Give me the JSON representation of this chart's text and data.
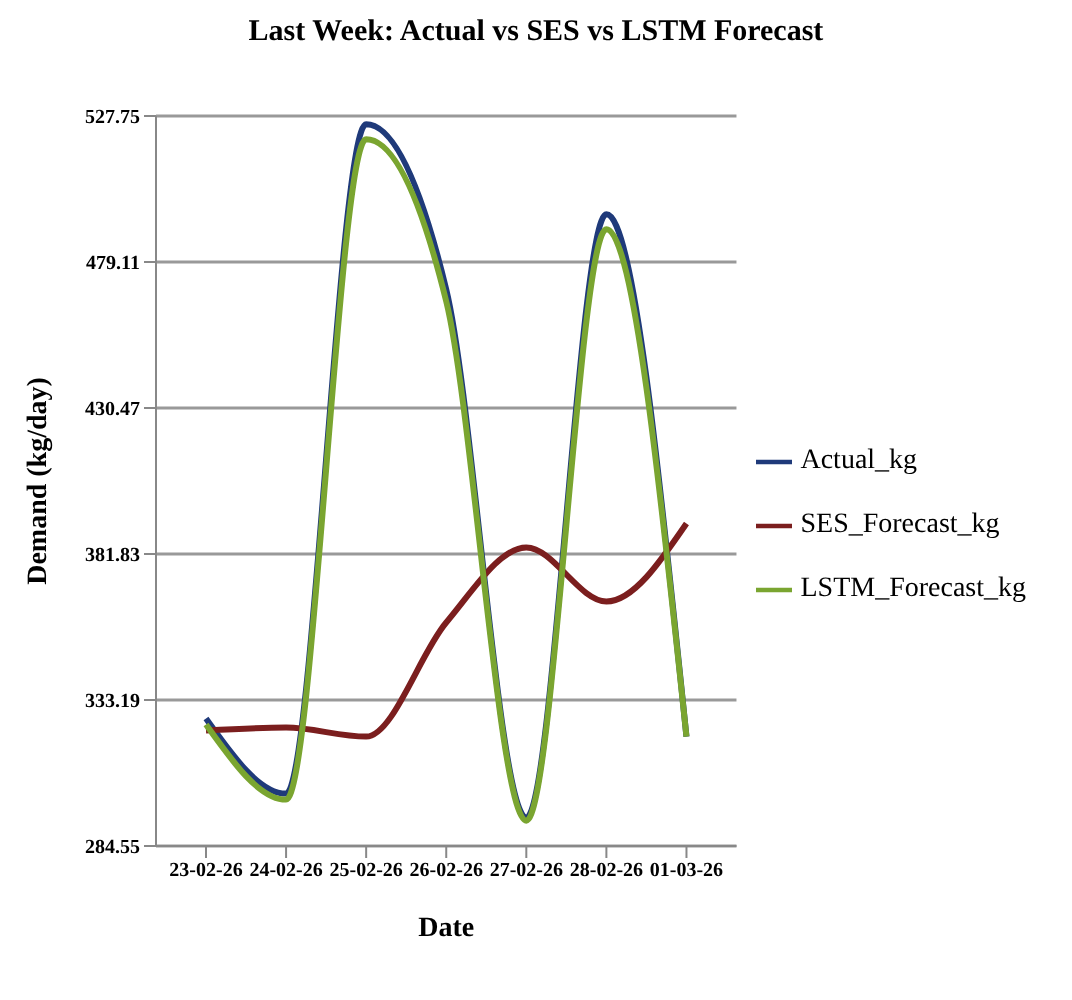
{
  "chart_data": {
    "type": "line",
    "title": "Last Week: Actual vs SES vs LSTM Forecast",
    "xlabel": "Date",
    "ylabel": "Demand (kg/day)",
    "categories": [
      "23-02-26",
      "24-02-26",
      "25-02-26",
      "26-02-26",
      "27-02-26",
      "28-02-26",
      "01-03-26"
    ],
    "series": [
      {
        "name": "Actual_kg",
        "color": "#1f3a7a",
        "values": [
          327,
          302,
          525,
          470,
          294,
          495,
          321
        ]
      },
      {
        "name": "SES_Forecast_kg",
        "color": "#7b1e1e",
        "values": [
          323,
          324,
          321,
          359,
          384,
          366,
          392
        ]
      },
      {
        "name": "LSTM_Forecast_kg",
        "color": "#7aa530",
        "values": [
          325,
          300,
          520,
          466,
          293,
          490,
          321
        ]
      }
    ],
    "ylim": [
      284.55,
      527.75
    ],
    "yticks": [
      284.55,
      333.19,
      381.83,
      430.47,
      479.11,
      527.75
    ],
    "grid": "y",
    "legend": "right",
    "marker": "none",
    "line_style": "solid"
  }
}
